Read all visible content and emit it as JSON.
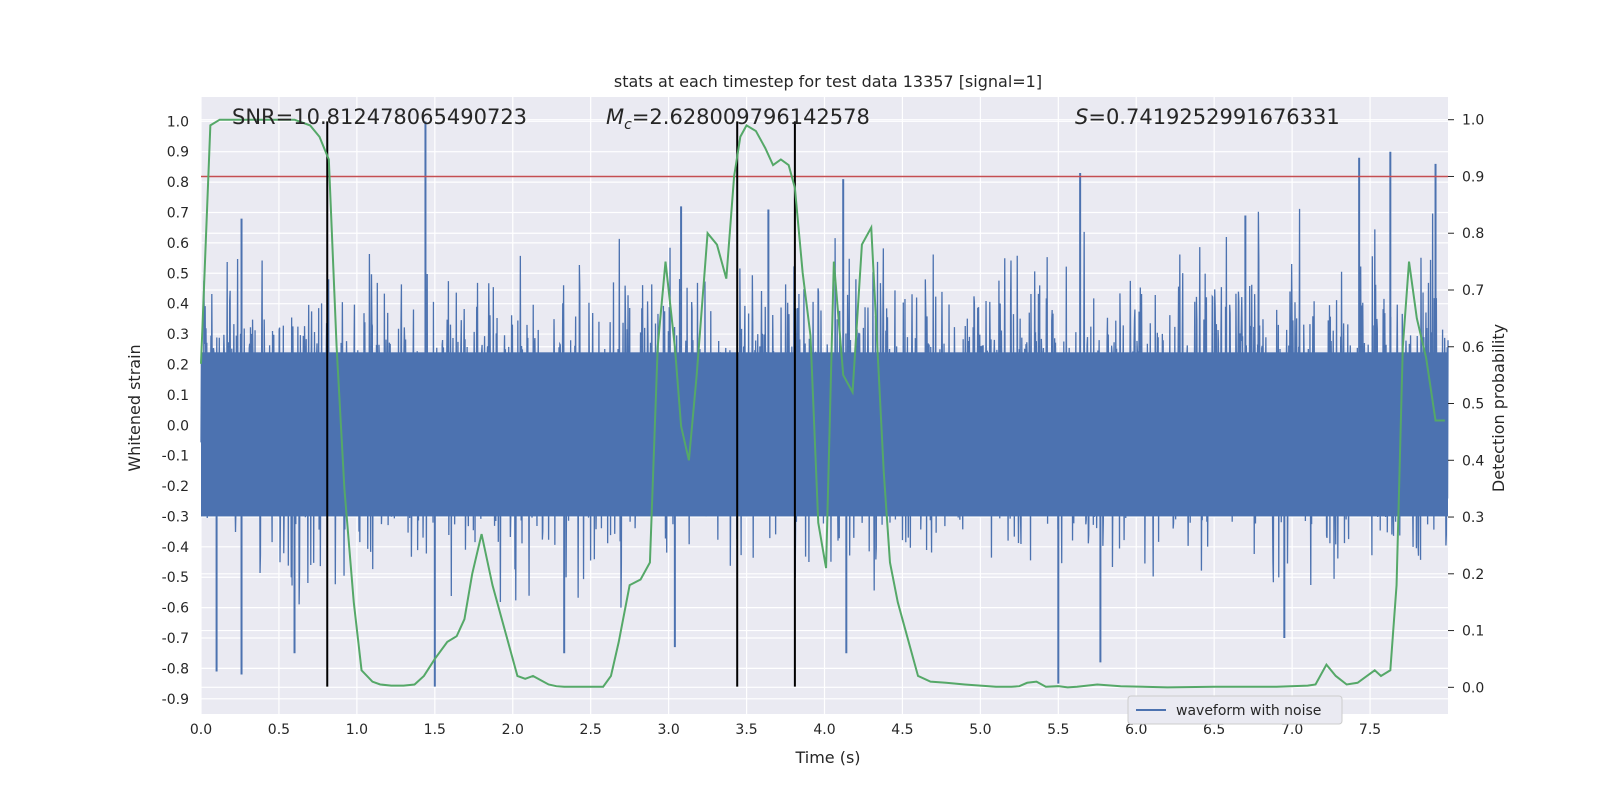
{
  "chart_data": {
    "type": "line",
    "title": "stats at each timestep for test data 13357 [signal=1]",
    "xlabel": "Time (s)",
    "ylabel_left": "Whitened strain",
    "ylabel_right": "Detection probability",
    "xlim": [
      0.0,
      8.0
    ],
    "ylim_left": [
      -0.95,
      1.08
    ],
    "ylim_right": [
      -0.047,
      1.04
    ],
    "x_ticks": [
      "0.0",
      "0.5",
      "1.0",
      "1.5",
      "2.0",
      "2.5",
      "3.0",
      "3.5",
      "4.0",
      "4.5",
      "5.0",
      "5.5",
      "6.0",
      "6.5",
      "7.0",
      "7.5"
    ],
    "y_left_ticks": [
      "-0.9",
      "-0.8",
      "-0.7",
      "-0.6",
      "-0.5",
      "-0.4",
      "-0.3",
      "-0.2",
      "-0.1",
      "0.0",
      "0.1",
      "0.2",
      "0.3",
      "0.4",
      "0.5",
      "0.6",
      "0.7",
      "0.8",
      "0.9",
      "1.0"
    ],
    "y_right_ticks": [
      "0.0",
      "0.1",
      "0.2",
      "0.3",
      "0.4",
      "0.5",
      "0.6",
      "0.7",
      "0.8",
      "0.9",
      "1.0"
    ],
    "grid": true,
    "legend_placement": "lower center-right",
    "annotations": {
      "snr": "SNR=10.812478065490723",
      "mc_symbol": "M",
      "mc_sub": "c",
      "mc_value": "=2.628009796142578",
      "s_symbol": "S",
      "s_value": "=0.7419252991676331"
    },
    "threshold_line": {
      "y_right": 0.9,
      "color": "#c44e52"
    },
    "vertical_lines_x": [
      0.81,
      3.44,
      3.81
    ],
    "series": [
      {
        "name": "waveform with noise",
        "color": "#4c72b0",
        "axis": "left",
        "style": "noise",
        "typical_range": [
          -0.38,
          0.43
        ],
        "spikes_up": [
          [
            1.44,
            1.0
          ],
          [
            4.12,
            0.81
          ],
          [
            5.64,
            0.83
          ],
          [
            7.43,
            0.88
          ],
          [
            7.63,
            0.9
          ],
          [
            7.92,
            0.86
          ],
          [
            3.08,
            0.72
          ],
          [
            0.26,
            0.68
          ],
          [
            3.64,
            0.71
          ],
          [
            6.7,
            0.69
          ]
        ],
        "spikes_down": [
          [
            5.5,
            -0.85
          ],
          [
            1.5,
            -0.86
          ],
          [
            0.1,
            -0.81
          ],
          [
            0.26,
            -0.82
          ],
          [
            5.77,
            -0.78
          ],
          [
            4.14,
            -0.75
          ],
          [
            0.6,
            -0.75
          ],
          [
            2.33,
            -0.75
          ],
          [
            3.04,
            -0.73
          ],
          [
            6.95,
            -0.7
          ]
        ]
      },
      {
        "name": "detection probability",
        "color": "#55a868",
        "axis": "right",
        "x": [
          0.0,
          0.06,
          0.12,
          0.3,
          0.6,
          0.7,
          0.76,
          0.82,
          0.87,
          0.92,
          0.98,
          1.03,
          1.1,
          1.15,
          1.22,
          1.3,
          1.37,
          1.43,
          1.5,
          1.58,
          1.64,
          1.69,
          1.74,
          1.8,
          1.87,
          1.93,
          1.98,
          2.03,
          2.08,
          2.13,
          2.23,
          2.28,
          2.33,
          2.45,
          2.58,
          2.63,
          2.68,
          2.75,
          2.82,
          2.88,
          2.93,
          2.98,
          3.04,
          3.08,
          3.13,
          3.18,
          3.25,
          3.31,
          3.37,
          3.42,
          3.46,
          3.5,
          3.56,
          3.62,
          3.67,
          3.72,
          3.77,
          3.81,
          3.86,
          3.91,
          3.96,
          4.01,
          4.06,
          4.12,
          4.18,
          4.24,
          4.3,
          4.38,
          4.42,
          4.47,
          4.52,
          4.6,
          4.68,
          4.78,
          4.9,
          5.0,
          5.1,
          5.2,
          5.25,
          5.3,
          5.36,
          5.42,
          5.5,
          5.56,
          5.62,
          5.75,
          5.9,
          6.2,
          6.5,
          6.9,
          7.1,
          7.15,
          7.22,
          7.28,
          7.35,
          7.42,
          7.48,
          7.53,
          7.57,
          7.63,
          7.67,
          7.71,
          7.75,
          7.8,
          7.86,
          7.92,
          7.98
        ],
        "values": [
          0.57,
          0.99,
          1.0,
          1.0,
          1.0,
          0.99,
          0.97,
          0.93,
          0.6,
          0.35,
          0.15,
          0.03,
          0.01,
          0.005,
          0.003,
          0.003,
          0.005,
          0.02,
          0.05,
          0.08,
          0.09,
          0.12,
          0.2,
          0.27,
          0.18,
          0.12,
          0.07,
          0.02,
          0.015,
          0.02,
          0.005,
          0.002,
          0.001,
          0.001,
          0.001,
          0.02,
          0.08,
          0.18,
          0.19,
          0.22,
          0.6,
          0.75,
          0.6,
          0.46,
          0.4,
          0.55,
          0.8,
          0.78,
          0.72,
          0.9,
          0.97,
          0.99,
          0.98,
          0.95,
          0.92,
          0.93,
          0.92,
          0.88,
          0.73,
          0.62,
          0.29,
          0.21,
          0.75,
          0.55,
          0.52,
          0.78,
          0.81,
          0.38,
          0.22,
          0.15,
          0.1,
          0.02,
          0.01,
          0.008,
          0.005,
          0.003,
          0.001,
          0.001,
          0.002,
          0.008,
          0.01,
          0.001,
          0.002,
          0.0,
          0.001,
          0.005,
          0.002,
          0.0,
          0.001,
          0.001,
          0.003,
          0.005,
          0.04,
          0.02,
          0.005,
          0.008,
          0.02,
          0.03,
          0.02,
          0.03,
          0.18,
          0.6,
          0.75,
          0.65,
          0.58,
          0.47,
          0.47
        ]
      }
    ]
  },
  "legend": {
    "label": "waveform with noise"
  }
}
